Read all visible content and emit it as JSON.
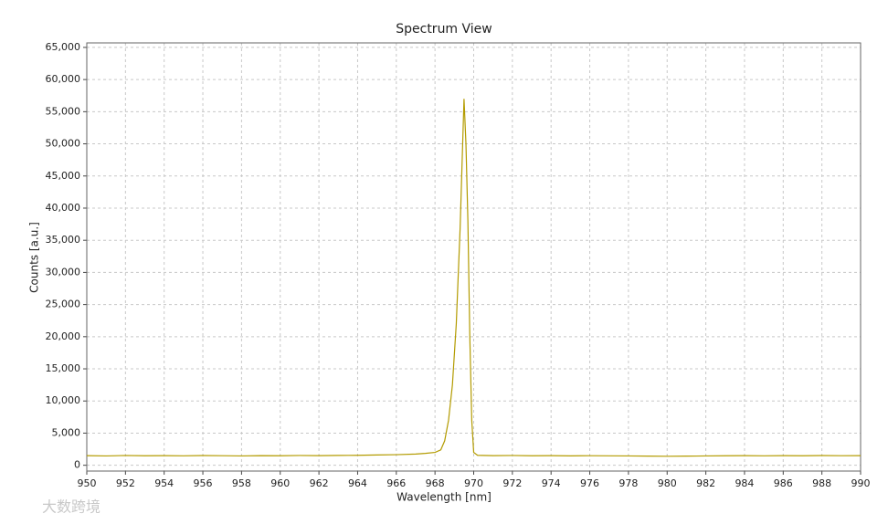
{
  "chart_data": {
    "type": "line",
    "title": "Spectrum View",
    "x_label": "Wavelength [nm]",
    "y_label": "Counts [a.u.]",
    "watermark": "大数跨境",
    "color": "#b39b00",
    "grid": true,
    "x": [
      950,
      951,
      952,
      953,
      954,
      955,
      956,
      957,
      958,
      959,
      960,
      961,
      962,
      963,
      964,
      965,
      966,
      967,
      967.5,
      968,
      968.3,
      968.5,
      968.7,
      968.9,
      969.1,
      969.3,
      969.5,
      969.6,
      969.7,
      969.8,
      969.9,
      970,
      970.2,
      971,
      972,
      973,
      974,
      975,
      976,
      977,
      978,
      979,
      980,
      981,
      982,
      983,
      984,
      985,
      986,
      987,
      988,
      989,
      990
    ],
    "values": [
      1500,
      1450,
      1520,
      1480,
      1500,
      1470,
      1510,
      1490,
      1450,
      1500,
      1480,
      1520,
      1500,
      1530,
      1550,
      1600,
      1650,
      1750,
      1850,
      2000,
      2400,
      3800,
      7000,
      12500,
      22000,
      37000,
      57000,
      50000,
      38000,
      20000,
      7000,
      2000,
      1550,
      1500,
      1520,
      1480,
      1500,
      1460,
      1490,
      1470,
      1450,
      1430,
      1400,
      1420,
      1450,
      1480,
      1500,
      1470,
      1500,
      1480,
      1510,
      1490,
      1500
    ],
    "xlim": [
      950,
      990
    ],
    "ylim": [
      -900,
      65700
    ],
    "xticks": [
      950,
      952,
      954,
      956,
      958,
      960,
      962,
      964,
      966,
      968,
      970,
      972,
      974,
      976,
      978,
      980,
      982,
      984,
      986,
      988,
      990
    ],
    "yticks": [
      0,
      {
        "value": 5000,
        "label": "5,000"
      },
      {
        "value": 10000,
        "label": "10,000"
      },
      {
        "value": 15000,
        "label": "15,000"
      },
      {
        "value": 20000,
        "label": "20,000"
      },
      {
        "value": 25000,
        "label": "25,000"
      },
      {
        "value": 30000,
        "label": "30,000"
      },
      {
        "value": 35000,
        "label": "35,000"
      },
      {
        "value": 40000,
        "label": "40,000"
      },
      {
        "value": 45000,
        "label": "45,000"
      },
      {
        "value": 50000,
        "label": "50,000"
      },
      {
        "value": 55000,
        "label": "55,000"
      },
      {
        "value": 60000,
        "label": "60,000"
      },
      {
        "value": 65000,
        "label": "65,000"
      }
    ]
  }
}
